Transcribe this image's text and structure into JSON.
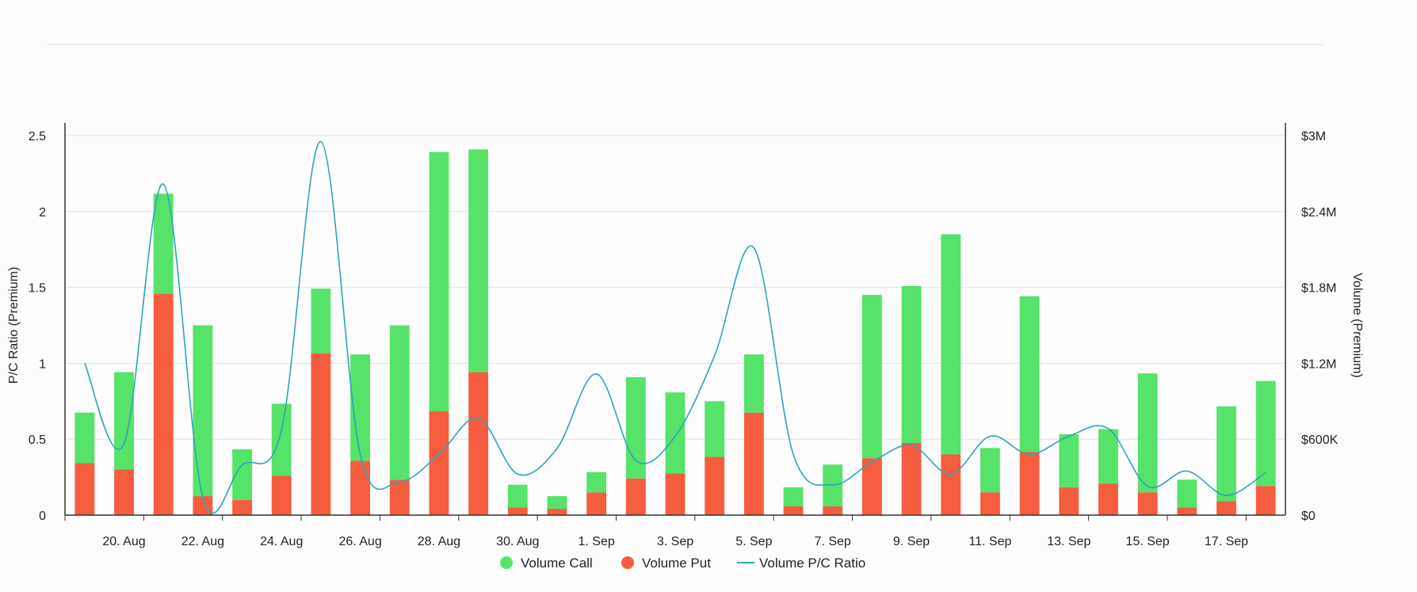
{
  "chart_data": {
    "type": "bar",
    "stacked": true,
    "categories": [
      "19. Aug",
      "20. Aug",
      "21. Aug",
      "22. Aug",
      "23. Aug",
      "24. Aug",
      "25. Aug",
      "26. Aug",
      "27. Aug",
      "28. Aug",
      "29. Aug",
      "30. Aug",
      "31. Aug",
      "1. Sep",
      "2. Sep",
      "3. Sep",
      "4. Sep",
      "5. Sep",
      "6. Sep",
      "7. Sep",
      "8. Sep",
      "9. Sep",
      "10. Sep",
      "11. Sep",
      "12. Sep",
      "13. Sep",
      "14. Sep",
      "15. Sep",
      "16. Sep",
      "17. Sep",
      "18. Sep"
    ],
    "x_tick_labels": [
      "20. Aug",
      "22. Aug",
      "24. Aug",
      "26. Aug",
      "28. Aug",
      "30. Aug",
      "1. Sep",
      "3. Sep",
      "5. Sep",
      "7. Sep",
      "9. Sep",
      "11. Sep",
      "13. Sep",
      "15. Sep",
      "17. Sep"
    ],
    "series": [
      {
        "name": "Volume Put",
        "axis": "right",
        "color": "#f55d3e",
        "values": [
          410000,
          360000,
          1750000,
          150000,
          120000,
          310000,
          1280000,
          430000,
          280000,
          820000,
          1130000,
          60000,
          50000,
          180000,
          290000,
          330000,
          460000,
          810000,
          70000,
          70000,
          450000,
          570000,
          480000,
          180000,
          500000,
          220000,
          250000,
          180000,
          60000,
          110000,
          230000
        ]
      },
      {
        "name": "Volume Call",
        "axis": "right",
        "color": "#55e36a",
        "values": [
          400000,
          770000,
          790000,
          1350000,
          400000,
          570000,
          510000,
          840000,
          1220000,
          2050000,
          1760000,
          180000,
          100000,
          160000,
          800000,
          640000,
          440000,
          460000,
          150000,
          330000,
          1290000,
          1240000,
          1740000,
          350000,
          1230000,
          420000,
          430000,
          940000,
          220000,
          750000,
          830000
        ]
      },
      {
        "name": "Volume P/C Ratio",
        "type": "line",
        "axis": "left",
        "color": "#2fa4b8",
        "values": [
          1.0,
          0.47,
          2.18,
          0.12,
          0.33,
          0.56,
          2.46,
          0.4,
          0.22,
          0.4,
          0.64,
          0.27,
          0.44,
          0.93,
          0.36,
          0.52,
          1.05,
          1.76,
          0.4,
          0.2,
          0.35,
          0.46,
          0.27,
          0.52,
          0.4,
          0.52,
          0.57,
          0.19,
          0.29,
          0.13,
          0.28
        ]
      }
    ],
    "y_left": {
      "label": "P/C Ratio (Premium)",
      "range": [
        0,
        2.5
      ],
      "ticks": [
        "0",
        "0.5",
        "1",
        "1.5",
        "2",
        "2.5"
      ]
    },
    "y_right": {
      "label": "Volume (Premium)",
      "range": [
        0,
        3000000
      ],
      "ticks": [
        "$0",
        "$600K",
        "$1.2M",
        "$1.8M",
        "$2.4M",
        "$3M"
      ]
    },
    "grid": true,
    "legend_position": "bottom-center",
    "legend": [
      {
        "label": "Volume Call",
        "symbol": "dot",
        "color": "#55e36a"
      },
      {
        "label": "Volume Put",
        "symbol": "dot",
        "color": "#f55d3e"
      },
      {
        "label": "Volume P/C Ratio",
        "symbol": "line",
        "color": "#2fa4b8"
      }
    ]
  }
}
